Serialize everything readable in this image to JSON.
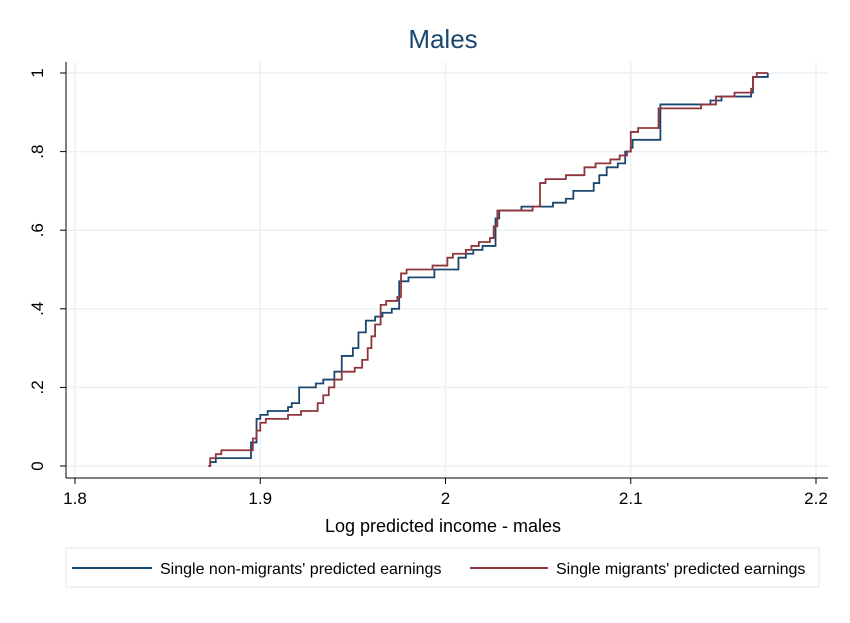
{
  "chart_data": {
    "type": "line",
    "step": true,
    "title": "Males",
    "xlabel": "Log predicted income - males",
    "ylabel": "",
    "xlim": [
      1.8,
      2.2
    ],
    "ylim": [
      0,
      1
    ],
    "x_ticks": [
      1.8,
      1.9,
      2.0,
      2.1,
      2.2
    ],
    "x_tick_labels": [
      "1.8",
      "1.9",
      "2",
      "2.1",
      "2.2"
    ],
    "y_ticks": [
      0,
      0.2,
      0.4,
      0.6,
      0.8,
      1.0
    ],
    "y_tick_labels": [
      "0",
      ".2",
      ".4",
      ".6",
      ".8",
      "1"
    ],
    "grid": true,
    "legend_position": "bottom",
    "series": [
      {
        "name": "Single non-migrants' predicted earnings",
        "color": "#1a476f",
        "points": [
          [
            1.872,
            0.0
          ],
          [
            1.873,
            0.01
          ],
          [
            1.876,
            0.02
          ],
          [
            1.894,
            0.02
          ],
          [
            1.895,
            0.06
          ],
          [
            1.898,
            0.12
          ],
          [
            1.9,
            0.13
          ],
          [
            1.904,
            0.14
          ],
          [
            1.915,
            0.15
          ],
          [
            1.917,
            0.16
          ],
          [
            1.921,
            0.2
          ],
          [
            1.93,
            0.21
          ],
          [
            1.934,
            0.22
          ],
          [
            1.94,
            0.24
          ],
          [
            1.944,
            0.28
          ],
          [
            1.95,
            0.3
          ],
          [
            1.953,
            0.34
          ],
          [
            1.957,
            0.37
          ],
          [
            1.962,
            0.38
          ],
          [
            1.966,
            0.39
          ],
          [
            1.971,
            0.4
          ],
          [
            1.975,
            0.47
          ],
          [
            1.98,
            0.48
          ],
          [
            1.992,
            0.48
          ],
          [
            1.994,
            0.5
          ],
          [
            2.007,
            0.53
          ],
          [
            2.011,
            0.54
          ],
          [
            2.015,
            0.55
          ],
          [
            2.02,
            0.56
          ],
          [
            2.027,
            0.63
          ],
          [
            2.029,
            0.65
          ],
          [
            2.041,
            0.66
          ],
          [
            2.052,
            0.66
          ],
          [
            2.058,
            0.67
          ],
          [
            2.065,
            0.68
          ],
          [
            2.069,
            0.7
          ],
          [
            2.08,
            0.72
          ],
          [
            2.083,
            0.74
          ],
          [
            2.087,
            0.76
          ],
          [
            2.093,
            0.77
          ],
          [
            2.097,
            0.8
          ],
          [
            2.1,
            0.81
          ],
          [
            2.101,
            0.83
          ],
          [
            2.114,
            0.83
          ],
          [
            2.116,
            0.92
          ],
          [
            2.126,
            0.92
          ],
          [
            2.143,
            0.93
          ],
          [
            2.149,
            0.94
          ],
          [
            2.165,
            0.95
          ],
          [
            2.166,
            0.99
          ],
          [
            2.174,
            1.0
          ]
        ]
      },
      {
        "name": "Single migrants' predicted earnings",
        "color": "#90353b",
        "points": [
          [
            1.872,
            0.0
          ],
          [
            1.873,
            0.02
          ],
          [
            1.876,
            0.03
          ],
          [
            1.879,
            0.04
          ],
          [
            1.893,
            0.04
          ],
          [
            1.896,
            0.07
          ],
          [
            1.898,
            0.09
          ],
          [
            1.9,
            0.11
          ],
          [
            1.903,
            0.12
          ],
          [
            1.915,
            0.13
          ],
          [
            1.922,
            0.14
          ],
          [
            1.931,
            0.16
          ],
          [
            1.934,
            0.18
          ],
          [
            1.937,
            0.2
          ],
          [
            1.94,
            0.22
          ],
          [
            1.944,
            0.24
          ],
          [
            1.951,
            0.25
          ],
          [
            1.955,
            0.27
          ],
          [
            1.958,
            0.3
          ],
          [
            1.96,
            0.33
          ],
          [
            1.962,
            0.36
          ],
          [
            1.965,
            0.41
          ],
          [
            1.968,
            0.42
          ],
          [
            1.974,
            0.43
          ],
          [
            1.976,
            0.49
          ],
          [
            1.979,
            0.5
          ],
          [
            1.993,
            0.51
          ],
          [
            2.001,
            0.53
          ],
          [
            2.004,
            0.54
          ],
          [
            2.011,
            0.55
          ],
          [
            2.014,
            0.56
          ],
          [
            2.018,
            0.57
          ],
          [
            2.024,
            0.58
          ],
          [
            2.026,
            0.61
          ],
          [
            2.028,
            0.65
          ],
          [
            2.032,
            0.65
          ],
          [
            2.047,
            0.66
          ],
          [
            2.051,
            0.72
          ],
          [
            2.054,
            0.73
          ],
          [
            2.063,
            0.73
          ],
          [
            2.065,
            0.74
          ],
          [
            2.073,
            0.74
          ],
          [
            2.075,
            0.76
          ],
          [
            2.081,
            0.77
          ],
          [
            2.089,
            0.78
          ],
          [
            2.094,
            0.79
          ],
          [
            2.098,
            0.8
          ],
          [
            2.1,
            0.85
          ],
          [
            2.104,
            0.86
          ],
          [
            2.113,
            0.86
          ],
          [
            2.115,
            0.91
          ],
          [
            2.13,
            0.91
          ],
          [
            2.138,
            0.92
          ],
          [
            2.146,
            0.94
          ],
          [
            2.156,
            0.95
          ],
          [
            2.165,
            0.96
          ],
          [
            2.166,
            0.99
          ],
          [
            2.168,
            1.0
          ],
          [
            2.174,
            1.0
          ]
        ]
      }
    ]
  }
}
